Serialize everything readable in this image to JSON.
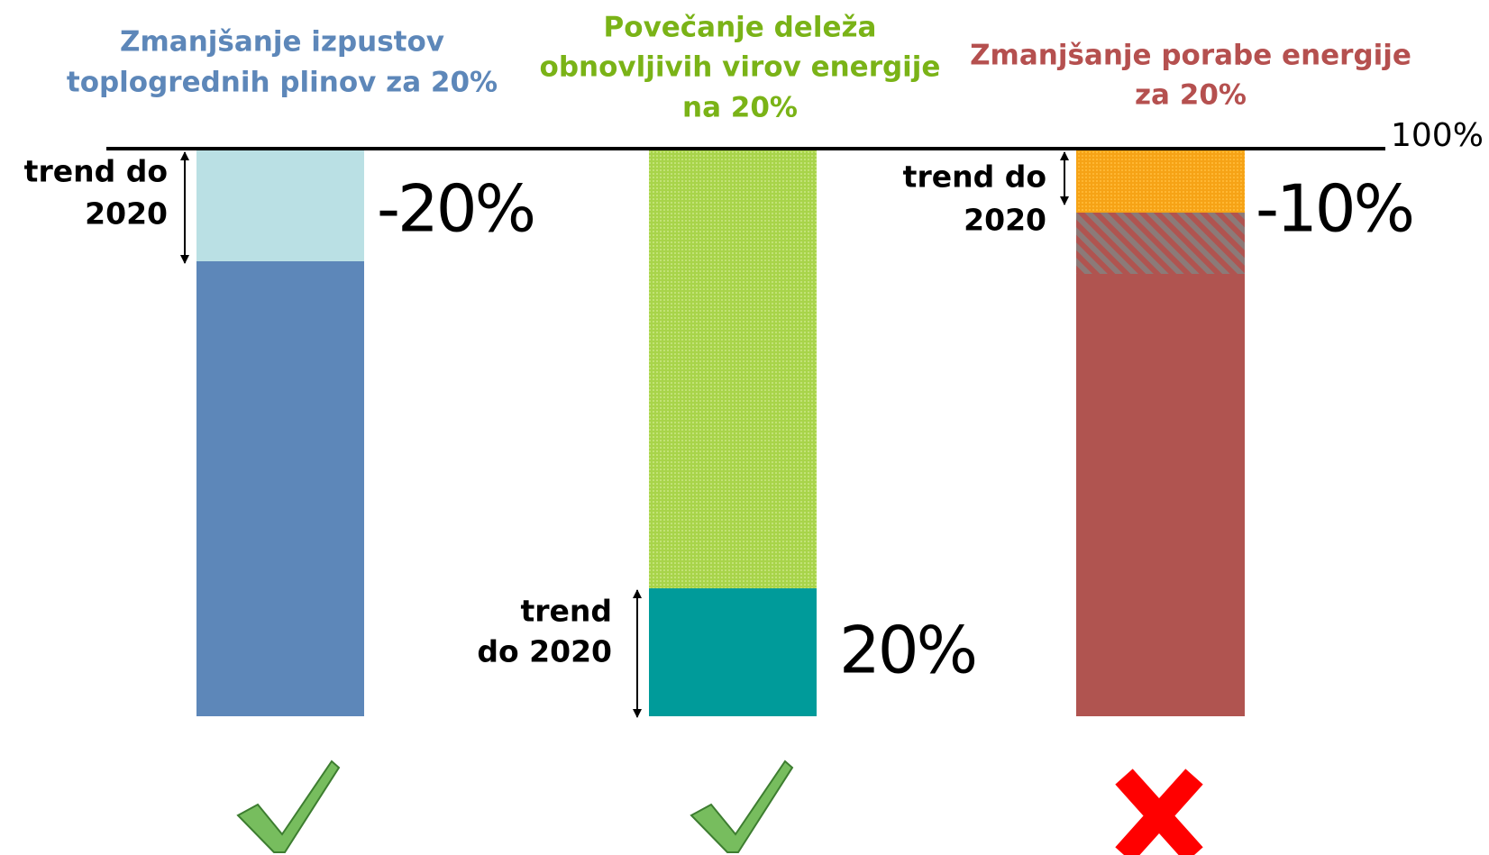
{
  "columns": [
    {
      "title": [
        "Zmanjšanje izpustov",
        "toplogrednih plinov za 20%"
      ],
      "trend": [
        "trend do",
        "2020"
      ],
      "change": "-20%"
    },
    {
      "title": [
        "Povečanje deleža",
        "obnovljivih virov energije",
        "na 20%"
      ],
      "trend": [
        "trend",
        "do 2020"
      ],
      "change": "20%"
    },
    {
      "title": [
        "Zmanjšanje porabe energije",
        "za 20%"
      ],
      "trend": [
        "trend do",
        "2020"
      ],
      "change": "-10%"
    }
  ],
  "baseline_label": "100%"
}
